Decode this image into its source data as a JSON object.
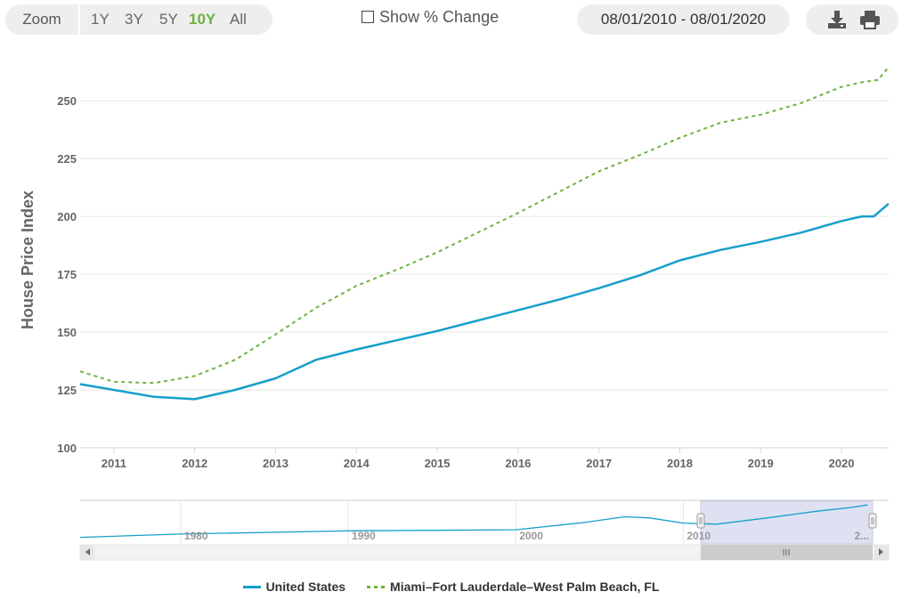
{
  "toolbar": {
    "zoom_label": "Zoom",
    "zoom_options": [
      "1Y",
      "3Y",
      "5Y",
      "10Y",
      "All"
    ],
    "zoom_active": "10Y",
    "show_change_label": "Show % Change",
    "date_range": "08/01/2010 - 08/01/2020",
    "download_icon": "download-icon",
    "print_icon": "print-icon"
  },
  "colors": {
    "united_states": "#169fc9",
    "miami": "#6db33f",
    "navigator_mask": "#dde1f2"
  },
  "chart_data": {
    "type": "line",
    "title": "",
    "xlabel": "",
    "ylabel": "House Price Index",
    "ylim": [
      100,
      262
    ],
    "yticks": [
      100,
      125,
      150,
      175,
      200,
      225,
      250
    ],
    "xlim": [
      2010.583,
      2020.583
    ],
    "xticks": [
      2011,
      2012,
      2013,
      2014,
      2015,
      2016,
      2017,
      2018,
      2019,
      2020
    ],
    "grid": true,
    "legend_position": "bottom",
    "series": [
      {
        "name": "United States",
        "style": "solid",
        "x": [
          2010.583,
          2011.0,
          2011.5,
          2012.0,
          2012.5,
          2013.0,
          2013.5,
          2014.0,
          2014.5,
          2015.0,
          2015.5,
          2016.0,
          2016.5,
          2017.0,
          2017.5,
          2018.0,
          2018.5,
          2019.0,
          2019.5,
          2020.0,
          2020.25,
          2020.4,
          2020.583
        ],
        "y": [
          127.5,
          125,
          122,
          121,
          125,
          130,
          138,
          142.5,
          146.5,
          150.5,
          155,
          159.5,
          164,
          169,
          174.5,
          181,
          185.5,
          189,
          193,
          198,
          200,
          200,
          205.5
        ]
      },
      {
        "name": "Miami–Fort Lauderdale–West Palm Beach, FL",
        "style": "dashed",
        "x": [
          2010.583,
          2011.0,
          2011.5,
          2012.0,
          2012.5,
          2013.0,
          2013.5,
          2014.0,
          2014.5,
          2015.0,
          2015.5,
          2016.0,
          2016.5,
          2017.0,
          2017.5,
          2018.0,
          2018.5,
          2019.0,
          2019.5,
          2020.0,
          2020.25,
          2020.45,
          2020.583
        ],
        "y": [
          133,
          128.5,
          128,
          131,
          138,
          149,
          160.5,
          170,
          177,
          184.5,
          193,
          201.5,
          210.5,
          219.5,
          226.5,
          234,
          240.5,
          244,
          249,
          256,
          258,
          259,
          264.5
        ]
      }
    ]
  },
  "navigator": {
    "xticks": [
      "1980",
      "1990",
      "2000",
      "2010",
      "2..."
    ],
    "series_x": [
      1974.0,
      1980,
      1990,
      2000,
      2004,
      2006.5,
      2008,
      2010,
      2012,
      2015,
      2018,
      2020,
      2021.0
    ],
    "series_y": [
      60,
      75,
      90,
      95,
      128,
      155,
      150,
      126,
      121,
      150,
      181,
      198,
      210
    ]
  }
}
